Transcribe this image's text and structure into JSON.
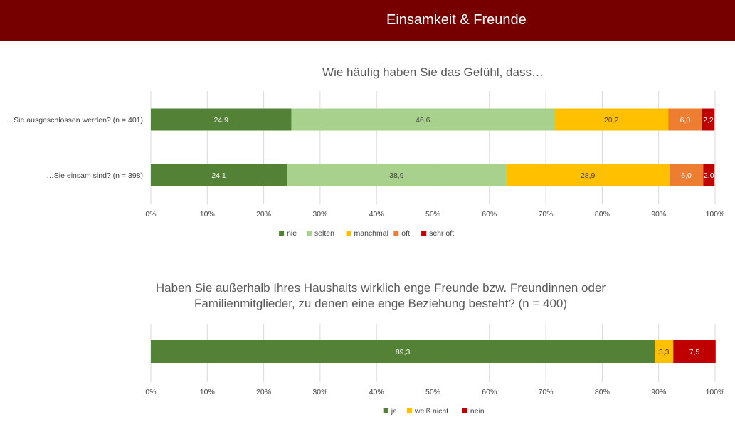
{
  "header": {
    "title": "Einsamkeit & Freunde"
  },
  "chart_data": [
    {
      "type": "bar",
      "orientation": "horizontal",
      "stacked": true,
      "title": "Wie häufig haben Sie das Gefühl, dass…",
      "categories": [
        "…Sie ausgeschlossen werden? (n = 401)",
        "…Sie einsam sind? (n = 398)"
      ],
      "series": [
        {
          "name": "nie",
          "color": "#538135",
          "label_color": "#ffffff",
          "values": [
            24.9,
            24.1
          ],
          "labels": [
            "24,9",
            "24,1"
          ]
        },
        {
          "name": "selten",
          "color": "#a9d18e",
          "label_color": "#404040",
          "values": [
            46.6,
            38.9
          ],
          "labels": [
            "46,6",
            "38,9"
          ]
        },
        {
          "name": "manchmal",
          "color": "#ffc000",
          "label_color": "#404040",
          "values": [
            20.2,
            28.9
          ],
          "labels": [
            "20,2",
            "28,9"
          ]
        },
        {
          "name": "oft",
          "color": "#ed7d31",
          "label_color": "#ffffff",
          "values": [
            6.0,
            6.0
          ],
          "labels": [
            "6,0",
            "6,0"
          ]
        },
        {
          "name": "sehr oft",
          "color": "#c00000",
          "label_color": "#ffffff",
          "values": [
            2.2,
            2.0
          ],
          "labels": [
            "2,2",
            "2,0"
          ]
        }
      ],
      "xlim": [
        0,
        100
      ],
      "ticks": [
        "0%",
        "10%",
        "20%",
        "30%",
        "40%",
        "50%",
        "60%",
        "70%",
        "80%",
        "90%",
        "100%"
      ],
      "grid": true,
      "legend": "bottom-center"
    },
    {
      "type": "bar",
      "orientation": "horizontal",
      "stacked": true,
      "title": "Haben Sie außerhalb Ihres Haushalts wirklich enge Freunde bzw. Freundinnen oder Familienmitglieder, zu denen eine enge Beziehung besteht? (n = 400)",
      "categories": [
        ""
      ],
      "series": [
        {
          "name": "ja",
          "color": "#538135",
          "label_color": "#ffffff",
          "values": [
            89.3
          ],
          "labels": [
            "89,3"
          ]
        },
        {
          "name": "weiß nicht",
          "color": "#ffc000",
          "label_color": "#404040",
          "values": [
            3.3
          ],
          "labels": [
            "3,3"
          ]
        },
        {
          "name": "nein",
          "color": "#c00000",
          "label_color": "#ffffff",
          "values": [
            7.5
          ],
          "labels": [
            "7,5"
          ]
        }
      ],
      "xlim": [
        0,
        100
      ],
      "ticks": [
        "0%",
        "10%",
        "20%",
        "30%",
        "40%",
        "50%",
        "60%",
        "70%",
        "80%",
        "90%",
        "100%"
      ],
      "grid": true,
      "legend": "bottom-center"
    }
  ]
}
